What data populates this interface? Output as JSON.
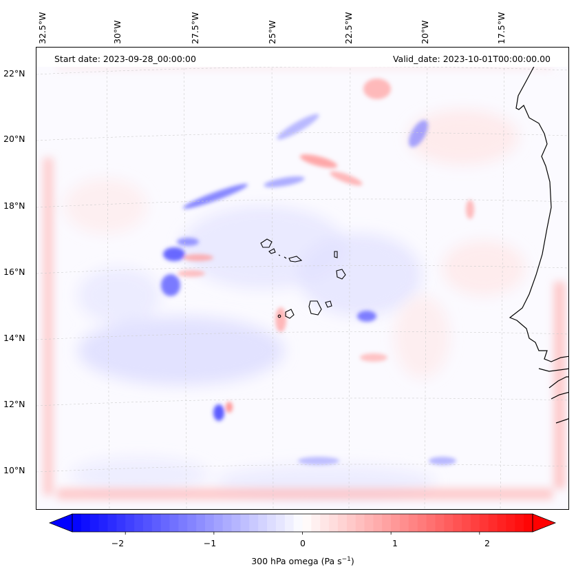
{
  "map": {
    "start_date": "Start date: 2023-09-28_00:00:00",
    "valid_date": "Valid_date: 2023-10-01T00:00:00.00",
    "lon_labels": [
      "32.5°W",
      "30°W",
      "27.5°W",
      "25°W",
      "22.5°W",
      "20°W",
      "17.5°W"
    ],
    "lat_labels": [
      "22°N",
      "20°N",
      "18°N",
      "16°N",
      "14°N",
      "12°N",
      "10°N"
    ],
    "colors": {
      "land_outline": "#000000",
      "grid": "#c8c8c8",
      "positive": "#ff0000",
      "negative": "#0000ff",
      "neutral": "#ffffff"
    }
  },
  "chart_data": {
    "type": "heatmap",
    "variable": "300 hPa omega",
    "units": "Pa s^-1",
    "value_range": [
      -2.6,
      2.6
    ],
    "colormap": "bwr",
    "lon_range_deg": [
      -33.0,
      -15.5
    ],
    "lat_range_deg": [
      8.8,
      22.8
    ],
    "colorbar": {
      "ticks": [
        -2,
        -1,
        0,
        1,
        2
      ],
      "tick_labels": [
        "−2",
        "−1",
        "0",
        "1",
        "2"
      ],
      "label_prefix": "300 hPa omega (Pa s",
      "label_exponent": "−1",
      "label_suffix": ")",
      "extend": "both"
    }
  }
}
